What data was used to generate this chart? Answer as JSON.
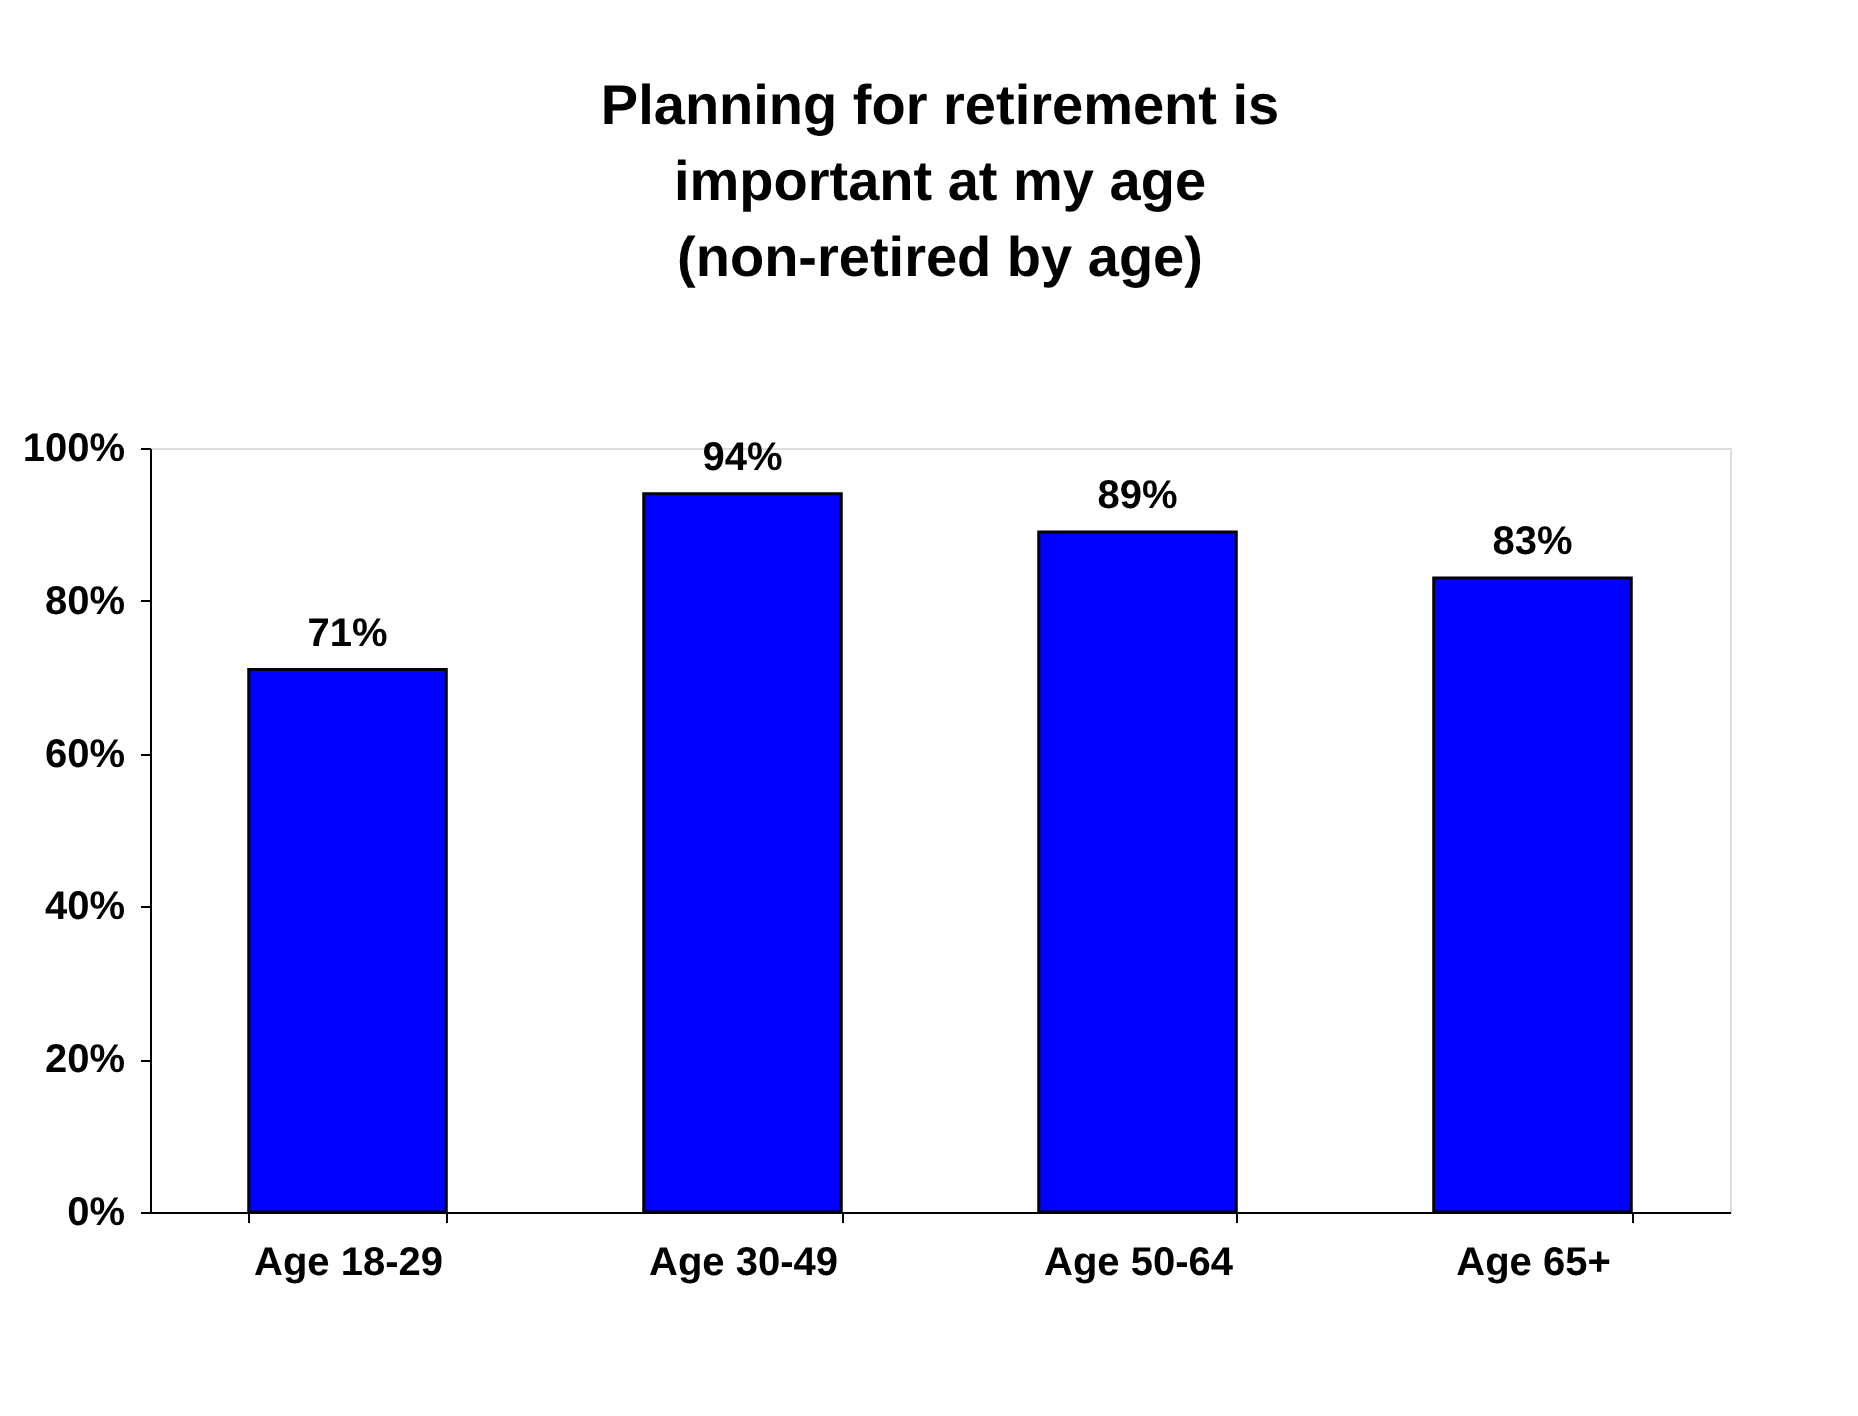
{
  "chart_data": {
    "type": "bar",
    "title": "Planning for retirement is\nimportant at my age\n(non-retired by age)",
    "categories": [
      "Age 18-29",
      "Age 30-49",
      "Age 50-64",
      "Age 65+"
    ],
    "values": [
      71,
      94,
      89,
      83
    ],
    "color": "#0000ff",
    "value_labels": [
      "71%",
      "94%",
      "89%",
      "83%"
    ],
    "ylim": [
      0,
      100
    ],
    "yticks": [
      {
        "value": 0,
        "label": "0%"
      },
      {
        "value": 20,
        "label": "20%"
      },
      {
        "value": 40,
        "label": "40%"
      },
      {
        "value": 60,
        "label": "60%"
      },
      {
        "value": 80,
        "label": "80%"
      },
      {
        "value": 100,
        "label": "100%"
      }
    ],
    "grid": false
  }
}
